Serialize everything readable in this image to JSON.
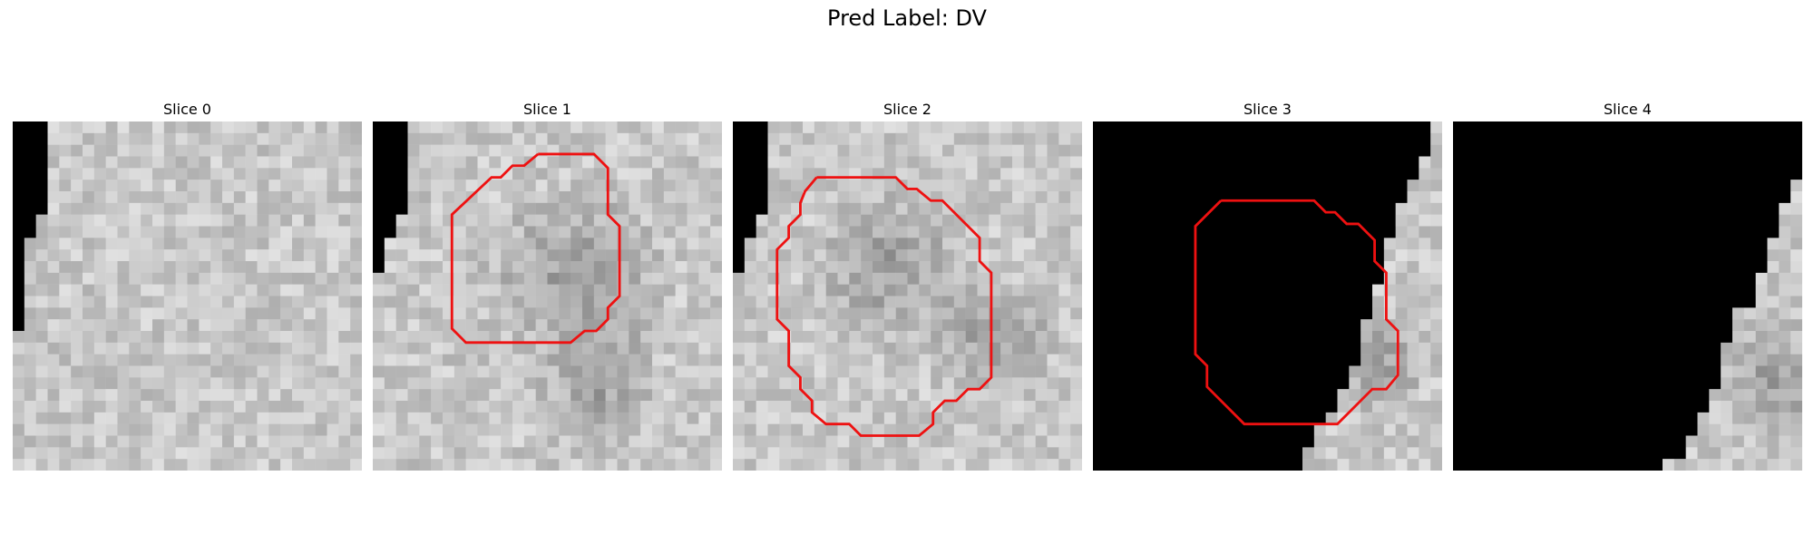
{
  "figure": {
    "title": "Pred Label: DV"
  },
  "colors": {
    "contour": "#ee1111",
    "mask": "#000000"
  },
  "panels": [
    {
      "title": "Slice 0",
      "contour": false
    },
    {
      "title": "Slice 1",
      "contour": true
    },
    {
      "title": "Slice 2",
      "contour": true
    },
    {
      "title": "Slice 3",
      "contour": true
    },
    {
      "title": "Slice 4",
      "contour": false
    }
  ]
}
